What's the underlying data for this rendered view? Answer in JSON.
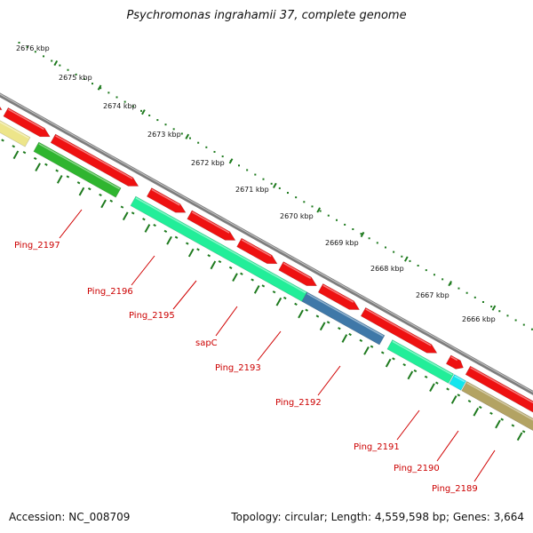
{
  "title": "Psychromonas ingrahamii 37, complete genome",
  "footer": {
    "accession": "Accession: NC_008709",
    "summary": "Topology: circular; Length: 4,559,598 bp; Genes: 3,664"
  },
  "ruler_labels": [
    "2676 kbp",
    "2675 kbp",
    "2674 kbp",
    "2673 kbp",
    "2672 kbp",
    "2671 kbp",
    "2670 kbp",
    "2669 kbp",
    "2668 kbp",
    "2667 kbp",
    "2666 kbp"
  ],
  "gene_labels": [
    "Ping_2197",
    "Ping_2196",
    "Ping_2195",
    "sapC",
    "Ping_2193",
    "Ping_2192",
    "Ping_2191",
    "Ping_2190",
    "Ping_2189"
  ],
  "colors": {
    "backbone": "#8a8a8a",
    "forward_cds": "#ee1111",
    "ruler_ticks": "#1e7a1e",
    "label_text": "#cc0000",
    "leader_line": "#d00000",
    "bar_yellow": "#ede58a",
    "bar_green": "#2fb52f",
    "bar_aqua": "#22ee99",
    "bar_steel": "#3f78a8",
    "bar_cyan": "#11e6ee",
    "bar_olive": "#b3a363"
  }
}
